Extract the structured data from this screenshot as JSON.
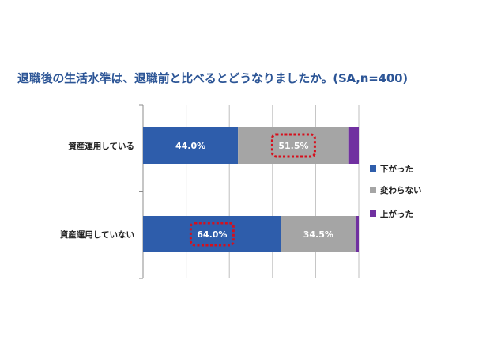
{
  "chart_data": {
    "type": "bar",
    "orientation": "horizontal",
    "stacked": true,
    "percent": true,
    "title": "退職後の生活水準は、退職前と比べるとどうなりましたか。(SA,n=400)",
    "categories": [
      "資産運用している",
      "資産運用していない"
    ],
    "series": [
      {
        "name": "下がった",
        "values": [
          44.0,
          64.0
        ],
        "labels": [
          "44.0%",
          "64.0%"
        ],
        "color": "#2e5dab"
      },
      {
        "name": "変わらない",
        "values": [
          51.5,
          34.5
        ],
        "labels": [
          "51.5%",
          "34.5%"
        ],
        "color": "#a5a5a5"
      },
      {
        "name": "上がった",
        "values": [
          4.5,
          1.5
        ],
        "labels": [
          "",
          ""
        ],
        "color": "#7030a0"
      }
    ],
    "xlim": [
      0,
      100
    ],
    "grid": true,
    "legend": "right",
    "highlight_color": "#d60f1c",
    "highlighted": [
      {
        "category": 0,
        "series": 1
      },
      {
        "category": 1,
        "series": 0
      }
    ]
  }
}
